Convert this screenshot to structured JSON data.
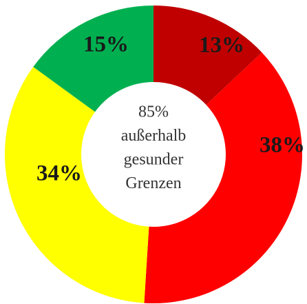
{
  "chart_data": {
    "type": "pie",
    "values": [
      13,
      38,
      34,
      15
    ],
    "value_labels": [
      "13%",
      "38%",
      "34%",
      "15%"
    ],
    "colors": [
      "#c00000",
      "#ff0000",
      "#ffff00",
      "#00b050"
    ],
    "center_label": [
      "85%",
      "außerhalb",
      "gesunder",
      "Grenzen"
    ]
  }
}
